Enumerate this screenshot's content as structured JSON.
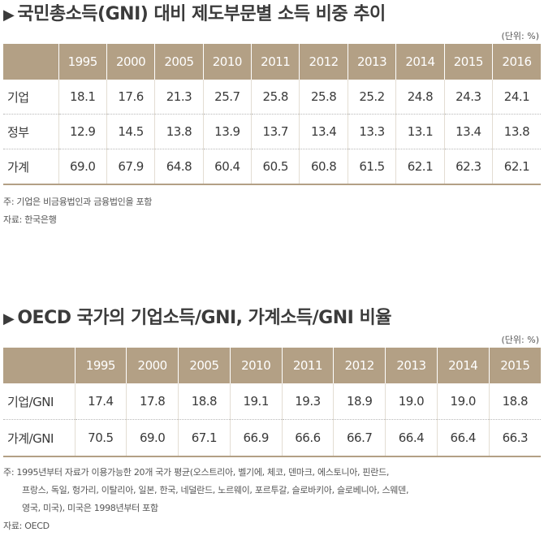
{
  "section1": {
    "title": "국민총소득(GNI) 대비 제도부문별 소득 비중 추이",
    "unit": "(단위: %)",
    "columns": [
      "",
      "1995",
      "2000",
      "2005",
      "2010",
      "2011",
      "2012",
      "2013",
      "2014",
      "2015",
      "2016"
    ],
    "rows": [
      {
        "label": "기업",
        "values": [
          "18.1",
          "17.6",
          "21.3",
          "25.7",
          "25.8",
          "25.8",
          "25.2",
          "24.8",
          "24.3",
          "24.1"
        ]
      },
      {
        "label": "정부",
        "values": [
          "12.9",
          "14.5",
          "13.8",
          "13.9",
          "13.7",
          "13.4",
          "13.3",
          "13.1",
          "13.4",
          "13.8"
        ]
      },
      {
        "label": "가계",
        "values": [
          "69.0",
          "67.9",
          "64.8",
          "60.4",
          "60.5",
          "60.8",
          "61.5",
          "62.1",
          "62.3",
          "62.1"
        ]
      }
    ],
    "note": "주: 기업은 비금융법인과 금융법인을 포함",
    "source": "자료: 한국은행"
  },
  "section2": {
    "title": "OECD 국가의 기업소득/GNI, 가계소득/GNI 비율",
    "unit": "(단위: %)",
    "columns": [
      "",
      "1995",
      "2000",
      "2005",
      "2010",
      "2011",
      "2012",
      "2013",
      "2014",
      "2015"
    ],
    "rows": [
      {
        "label": "기업/GNI",
        "values": [
          "17.4",
          "17.8",
          "18.8",
          "19.1",
          "19.3",
          "18.9",
          "19.0",
          "19.0",
          "18.8"
        ]
      },
      {
        "label": "가계/GNI",
        "values": [
          "70.5",
          "69.0",
          "67.1",
          "66.9",
          "66.6",
          "66.7",
          "66.4",
          "66.4",
          "66.3"
        ]
      }
    ],
    "note_lines": [
      "주: 1995년부터 자료가 이용가능한 20개 국가 평균(오스트리아, 벨기에, 체코, 덴마크, 에스토니아, 핀란드,",
      "프랑스, 독일, 헝가리, 이탈리아, 일본, 한국, 네덜란드, 노르웨이, 포르투갈, 슬로바키아, 슬로베니아, 스웨덴,",
      "영국, 미국), 미국은 1998년부터 포함"
    ],
    "source": "자료: OECD"
  }
}
